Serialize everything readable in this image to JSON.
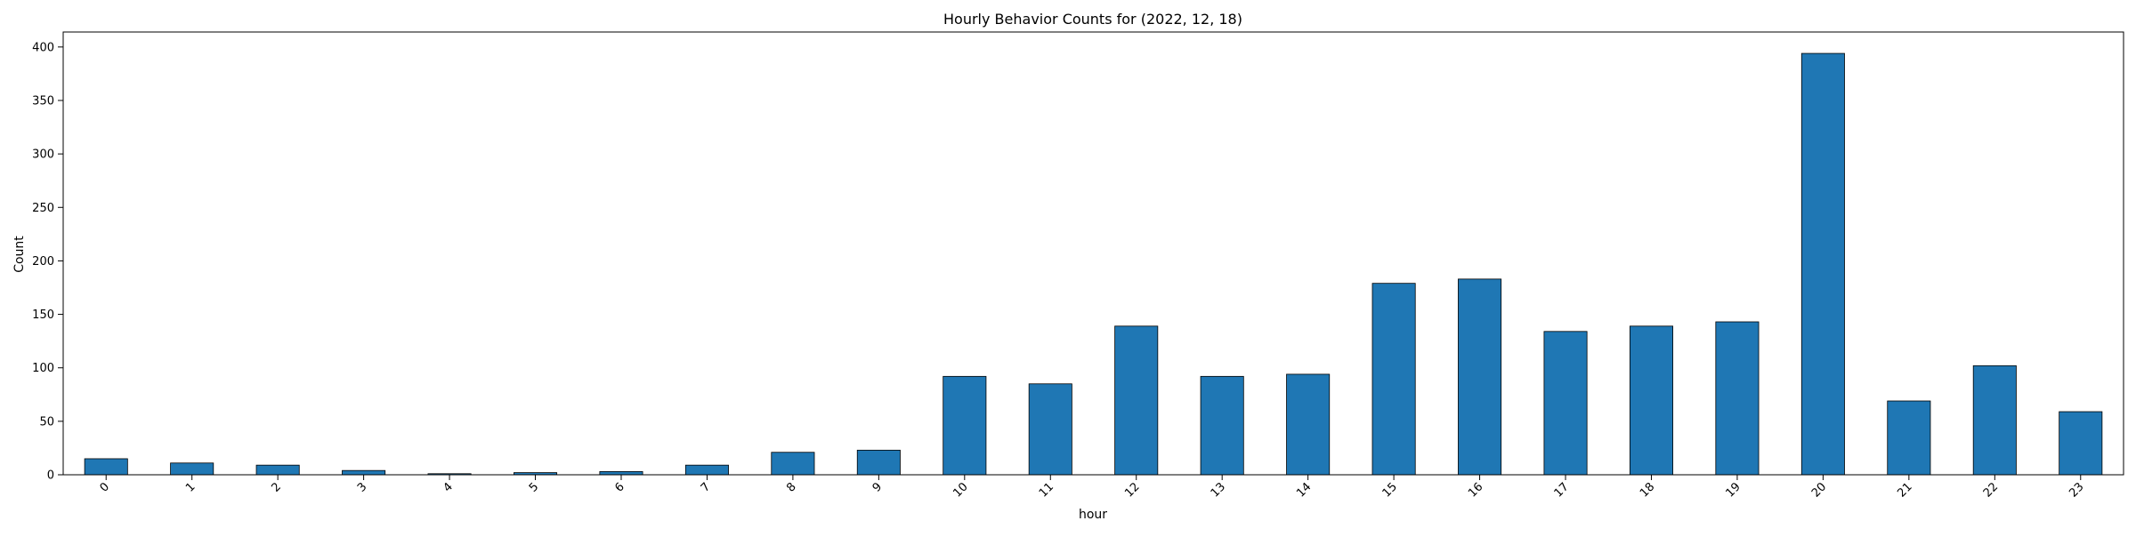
{
  "chart_data": {
    "type": "bar",
    "title": "Hourly Behavior Counts for (2022, 12, 18)",
    "xlabel": "hour",
    "ylabel": "Count",
    "categories": [
      "0",
      "1",
      "2",
      "3",
      "4",
      "5",
      "6",
      "7",
      "8",
      "9",
      "10",
      "11",
      "12",
      "13",
      "14",
      "15",
      "16",
      "17",
      "18",
      "19",
      "20",
      "21",
      "22",
      "23"
    ],
    "values": [
      15,
      11,
      9,
      4,
      1,
      2,
      3,
      9,
      21,
      23,
      92,
      85,
      139,
      92,
      94,
      179,
      183,
      134,
      139,
      143,
      394,
      69,
      102,
      59
    ],
    "ylim": [
      0,
      414
    ],
    "yticks": [
      0,
      50,
      100,
      150,
      200,
      250,
      300,
      350,
      400
    ],
    "grid": false,
    "legend": "none",
    "bar_color": "#1f77b4",
    "bar_edge_color": "#000000"
  }
}
